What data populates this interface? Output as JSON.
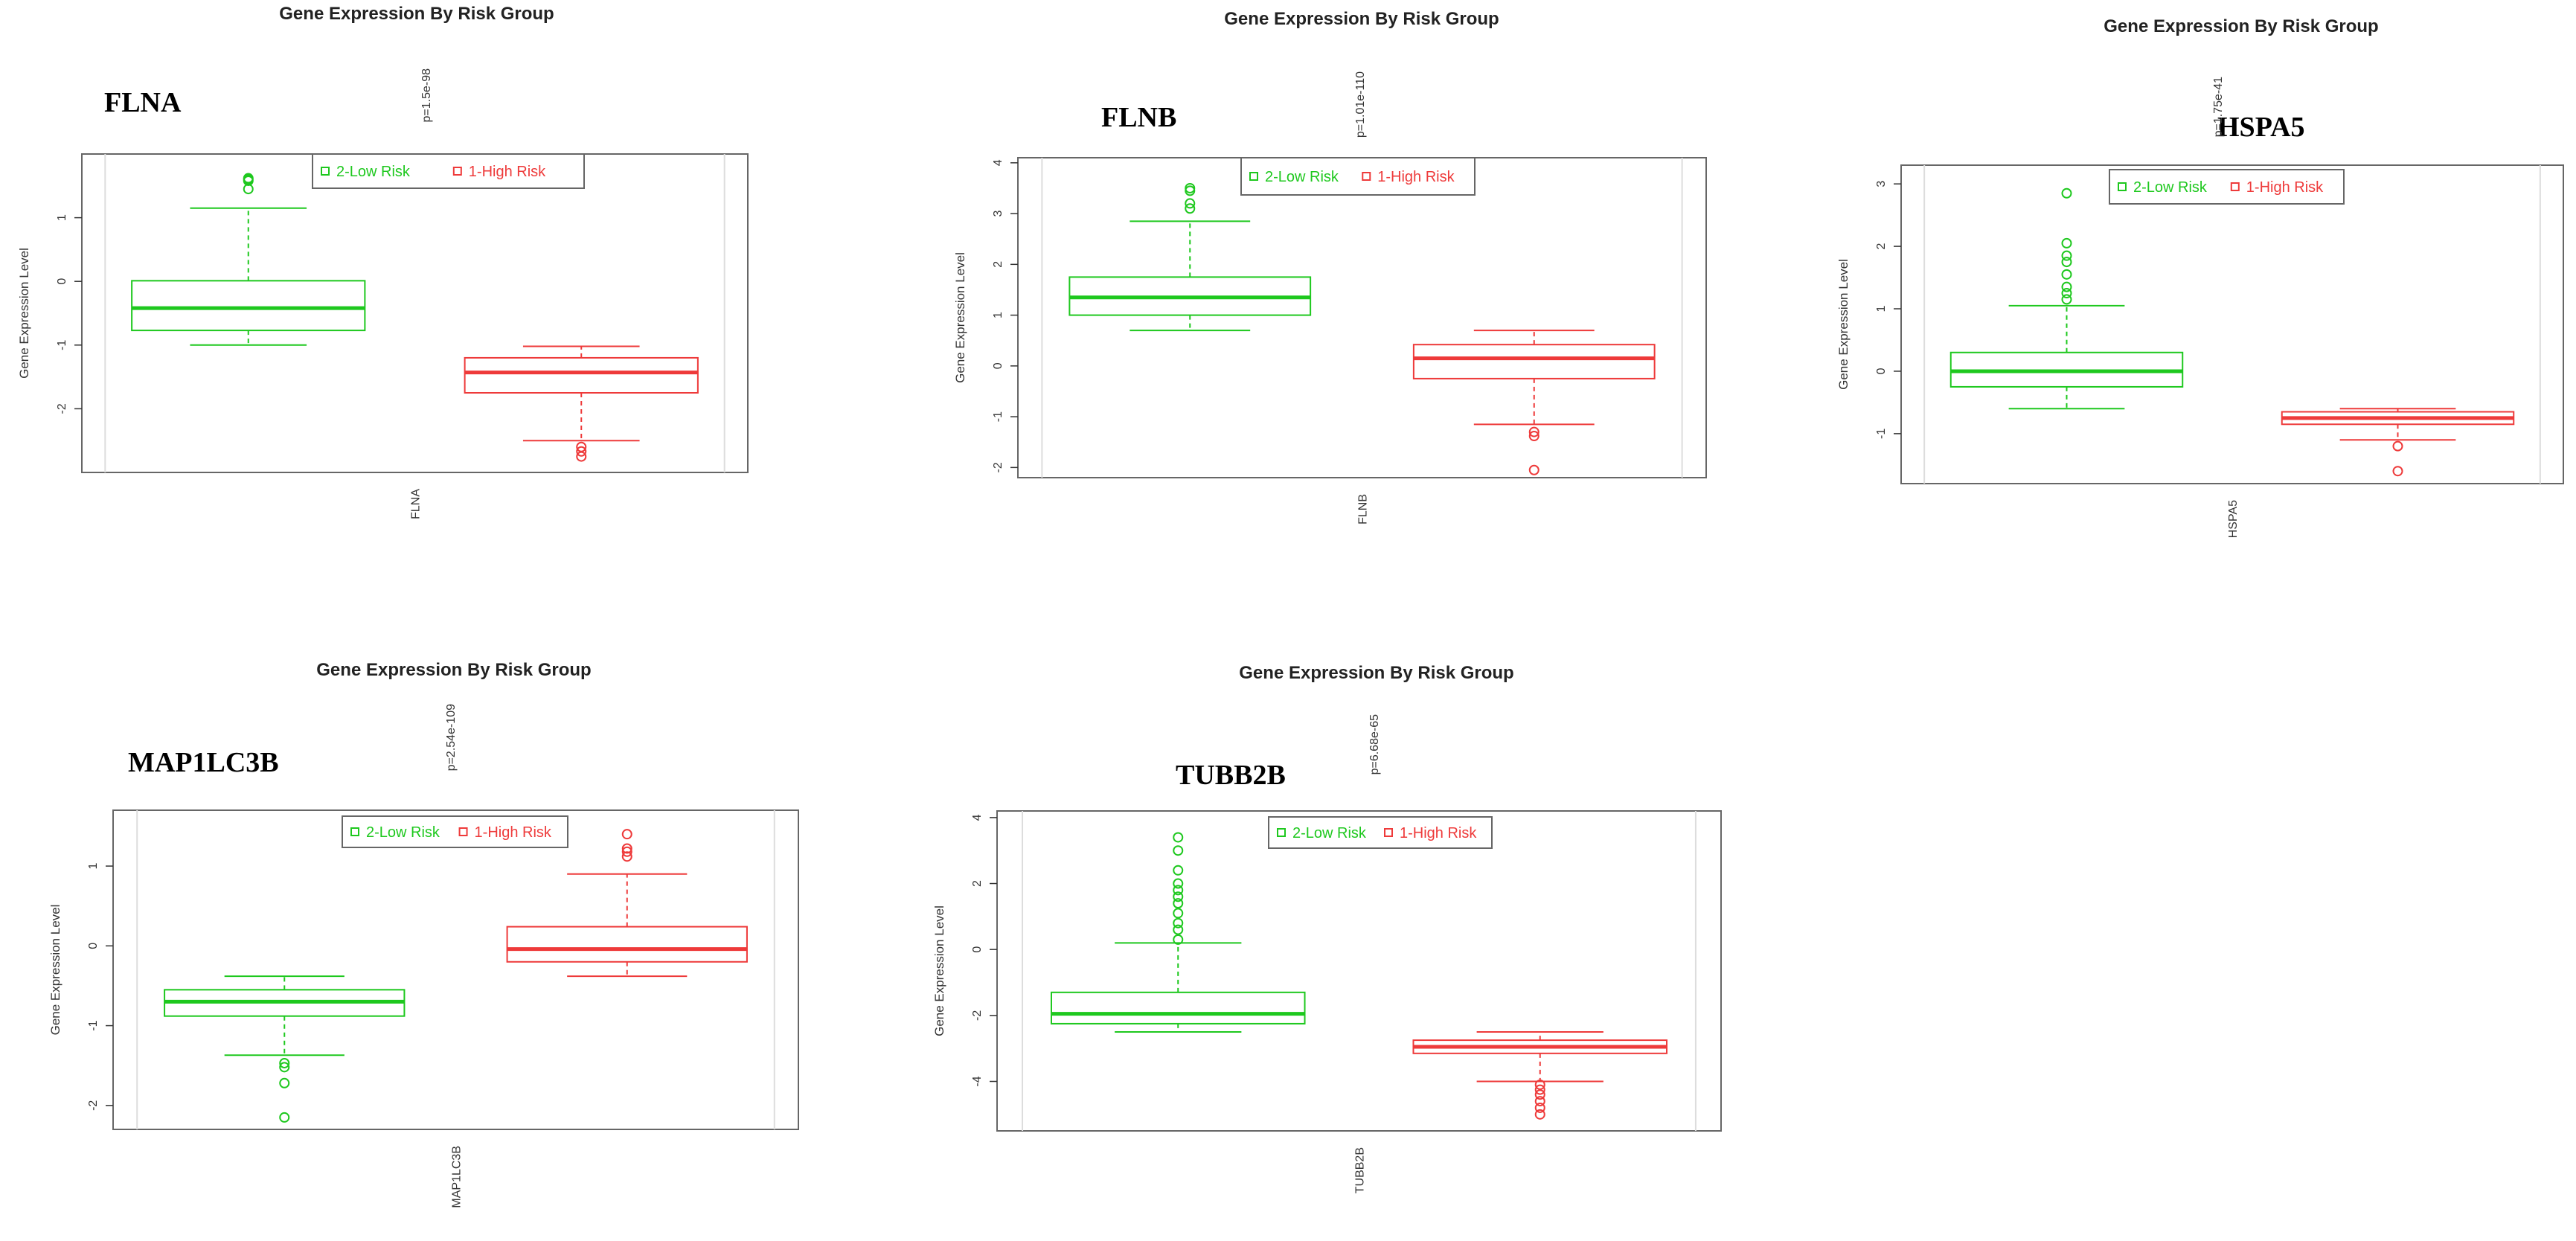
{
  "colors": {
    "low": "#1ec81e",
    "high": "#ee3a3a",
    "frame": "#666666",
    "inner": "#dddddd"
  },
  "chart_data": [
    {
      "type": "boxplot",
      "title": "Gene Expression By Risk Group",
      "gene": "FLNA",
      "ylabel": "Gene Expression Level",
      "xlabel": "FLNA",
      "pvalue": "p=1.5e-98",
      "ylim": [
        -3.0,
        2.0
      ],
      "yticks": [
        -2,
        -1,
        0,
        1
      ],
      "legend": [
        "2-Low Risk",
        "1-High Risk"
      ],
      "groups": [
        {
          "name": "2-Low Risk",
          "q1": -0.77,
          "median": -0.42,
          "q3": 0.01,
          "whisker_low": -1.0,
          "whisker_high": 1.15,
          "outliers": [
            1.45,
            1.58,
            1.62,
            1.6
          ]
        },
        {
          "name": "1-High Risk",
          "q1": -1.75,
          "median": -1.43,
          "q3": -1.2,
          "whisker_low": -2.5,
          "whisker_high": -1.02,
          "outliers": [
            -2.6,
            -2.67,
            -2.75
          ]
        }
      ]
    },
    {
      "type": "boxplot",
      "title": "Gene Expression By Risk Group",
      "gene": "FLNB",
      "ylabel": "Gene Expression Level",
      "xlabel": "FLNB",
      "pvalue": "p=1.01e-110",
      "ylim": [
        -2.2,
        4.1
      ],
      "yticks": [
        -2,
        -1,
        0,
        1,
        2,
        3,
        4
      ],
      "legend": [
        "2-Low Risk",
        "1-High Risk"
      ],
      "groups": [
        {
          "name": "2-Low Risk",
          "q1": 1.0,
          "median": 1.35,
          "q3": 1.75,
          "whisker_low": 0.7,
          "whisker_high": 2.85,
          "outliers": [
            3.1,
            3.2,
            3.45,
            3.5
          ]
        },
        {
          "name": "1-High Risk",
          "q1": -0.25,
          "median": 0.15,
          "q3": 0.42,
          "whisker_low": -1.15,
          "whisker_high": 0.7,
          "outliers": [
            -1.3,
            -1.38,
            -2.05
          ]
        }
      ]
    },
    {
      "type": "boxplot",
      "title": "Gene Expression By Risk Group",
      "gene": "HSPA5",
      "ylabel": "Gene Expression Level",
      "xlabel": "HSPA5",
      "pvalue": "p=1.75e-41",
      "ylim": [
        -1.8,
        3.3
      ],
      "yticks": [
        -1,
        0,
        1,
        2,
        3
      ],
      "legend": [
        "2-Low Risk",
        "1-High Risk"
      ],
      "groups": [
        {
          "name": "2-Low Risk",
          "q1": -0.25,
          "median": 0.0,
          "q3": 0.3,
          "whisker_low": -0.6,
          "whisker_high": 1.05,
          "outliers": [
            1.15,
            1.25,
            1.35,
            1.55,
            1.75,
            1.85,
            2.05,
            2.85
          ]
        },
        {
          "name": "1-High Risk",
          "q1": -0.85,
          "median": -0.75,
          "q3": -0.65,
          "whisker_low": -1.1,
          "whisker_high": -0.6,
          "outliers": [
            -1.2,
            -1.6
          ]
        }
      ]
    },
    {
      "type": "boxplot",
      "title": "Gene Expression By Risk Group",
      "gene": "MAP1LC3B",
      "ylabel": "Gene Expression Level",
      "xlabel": "MAP1LC3B",
      "pvalue": "p=2.54e-109",
      "ylim": [
        -2.3,
        1.7
      ],
      "yticks": [
        -2,
        -1,
        0,
        1
      ],
      "legend": [
        "2-Low Risk",
        "1-High Risk"
      ],
      "groups": [
        {
          "name": "2-Low Risk",
          "q1": -0.88,
          "median": -0.7,
          "q3": -0.55,
          "whisker_low": -1.37,
          "whisker_high": -0.38,
          "outliers": [
            -1.47,
            -1.52,
            -1.72,
            -2.15
          ]
        },
        {
          "name": "1-High Risk",
          "q1": -0.2,
          "median": -0.04,
          "q3": 0.24,
          "whisker_low": -0.38,
          "whisker_high": 0.9,
          "outliers": [
            1.12,
            1.18,
            1.22,
            1.4
          ]
        }
      ]
    },
    {
      "type": "boxplot",
      "title": "Gene Expression By Risk Group",
      "gene": "TUBB2B",
      "ylabel": "Gene Expression Level",
      "xlabel": "TUBB2B",
      "pvalue": "p=6.68e-65",
      "ylim": [
        -5.5,
        4.2
      ],
      "yticks": [
        -4,
        -2,
        0,
        2,
        4
      ],
      "legend": [
        "2-Low Risk",
        "1-High Risk"
      ],
      "groups": [
        {
          "name": "2-Low Risk",
          "q1": -2.25,
          "median": -1.95,
          "q3": -1.3,
          "whisker_low": -2.5,
          "whisker_high": 0.2,
          "outliers": [
            0.3,
            0.6,
            0.8,
            1.1,
            1.4,
            1.6,
            1.8,
            2.0,
            2.4,
            3.0,
            3.4
          ]
        },
        {
          "name": "1-High Risk",
          "q1": -3.15,
          "median": -2.95,
          "q3": -2.75,
          "whisker_low": -4.0,
          "whisker_high": -2.5,
          "outliers": [
            -4.1,
            -4.25,
            -4.4,
            -4.6,
            -4.8,
            -5.0
          ]
        }
      ]
    }
  ]
}
